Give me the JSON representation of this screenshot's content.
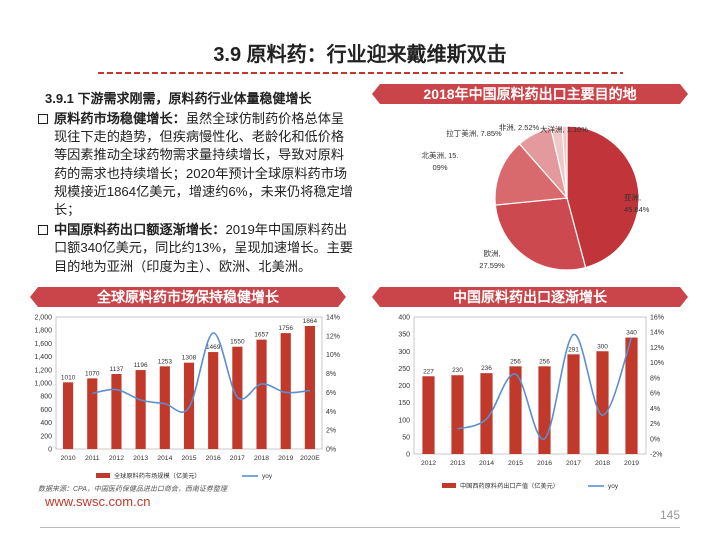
{
  "slide": {
    "title": "3.9 原料药：行业迎来戴维斯双击",
    "subtitle": "3.9.1 下游需求刚需，原料药行业体量稳健增长",
    "bullets": [
      {
        "lead": "原料药市场稳健增长：",
        "text": "虽然全球仿制药价格总体呈现往下走的趋势，但疾病慢性化、老龄化和低价格等因素推动全球药物需求量持续增长，导致对原料药的需求也持续增长；2020年预计全球原料药市场规模接近1864亿美元，增速约6%，未来仍将稳定增长；"
      },
      {
        "lead": "中国原料药出口额逐渐增长：",
        "text": "2019年中国原料药出口额340亿美元，同比约13%，呈现加速增长。主要目的地为亚洲（印度为主）、欧洲、北美洲。"
      }
    ],
    "source": "数据来源：CPA，中国医药保健品进出口商会，西南证券整理",
    "website": "www.swsc.com.cn",
    "page_number": "145"
  },
  "colors": {
    "accent": "#c9454a",
    "bar": "#c0392b",
    "line": "#5b8fd0",
    "pie": [
      "#c0343a",
      "#cc4a4f",
      "#d86a6e",
      "#e49a9c",
      "#f0c8c9"
    ]
  },
  "chart_data": [
    {
      "type": "pie",
      "title": "2018年中国原料药出口主要目的地",
      "categories": [
        "亚洲",
        "欧洲",
        "北美洲",
        "拉丁美洲",
        "非洲",
        "大洋洲"
      ],
      "values": [
        45.84,
        27.59,
        15.09,
        7.85,
        2.52,
        1.1
      ],
      "labels": [
        "亚洲,\n45.84%",
        "欧洲,\n27.59%",
        "北美洲, 15.\n09%",
        "拉丁美洲, 7.85%",
        "非洲, 2.52%",
        "大洋洲, 1.10%"
      ]
    },
    {
      "type": "bar",
      "title": "全球原料药市场保持稳健增长",
      "categories": [
        "2010",
        "2011",
        "2012",
        "2013",
        "2014",
        "2015",
        "2016",
        "2017",
        "2018",
        "2019",
        "2020E"
      ],
      "series": [
        {
          "name": "全球原料药市场规模（亿美元）",
          "type": "bar",
          "axis": "left",
          "values": [
            1010,
            1070,
            1137,
            1196,
            1253,
            1308,
            1469,
            1550,
            1657,
            1756,
            1864
          ]
        },
        {
          "name": "yoy",
          "type": "line",
          "axis": "right",
          "values": [
            null,
            5.9,
            6.3,
            5.2,
            4.8,
            4.4,
            12.3,
            5.5,
            6.9,
            6.0,
            6.2
          ]
        }
      ],
      "ylim_left": [
        0,
        2000
      ],
      "yticks_left": [
        "0",
        "200",
        "400",
        "600",
        "800",
        "1,000",
        "1,200",
        "1,400",
        "1,600",
        "1,800",
        "2,000"
      ],
      "ylim_right": [
        0,
        14
      ],
      "yticks_right": [
        "0%",
        "2%",
        "4%",
        "6%",
        "8%",
        "10%",
        "12%",
        "14%"
      ],
      "legend": "bottom"
    },
    {
      "type": "bar",
      "title": "中国原料药出口逐渐增长",
      "categories": [
        "2012",
        "2013",
        "2014",
        "2015",
        "2016",
        "2017",
        "2018",
        "2019"
      ],
      "series": [
        {
          "name": "中国西药原料药出口产值（亿美元）",
          "type": "bar",
          "axis": "left",
          "values": [
            227,
            230,
            236,
            256,
            256,
            291,
            300,
            340
          ]
        },
        {
          "name": "yoy",
          "type": "line",
          "axis": "right",
          "values": [
            null,
            1.3,
            2.6,
            8.5,
            0.0,
            13.7,
            3.1,
            13.3
          ]
        }
      ],
      "ylim_left": [
        0,
        400
      ],
      "yticks_left": [
        "0",
        "50",
        "100",
        "150",
        "200",
        "250",
        "300",
        "350",
        "400"
      ],
      "ylim_right": [
        -2,
        16
      ],
      "yticks_right": [
        "-2%",
        "0%",
        "2%",
        "4%",
        "6%",
        "8%",
        "10%",
        "12%",
        "14%",
        "16%"
      ],
      "legend": "bottom"
    }
  ]
}
